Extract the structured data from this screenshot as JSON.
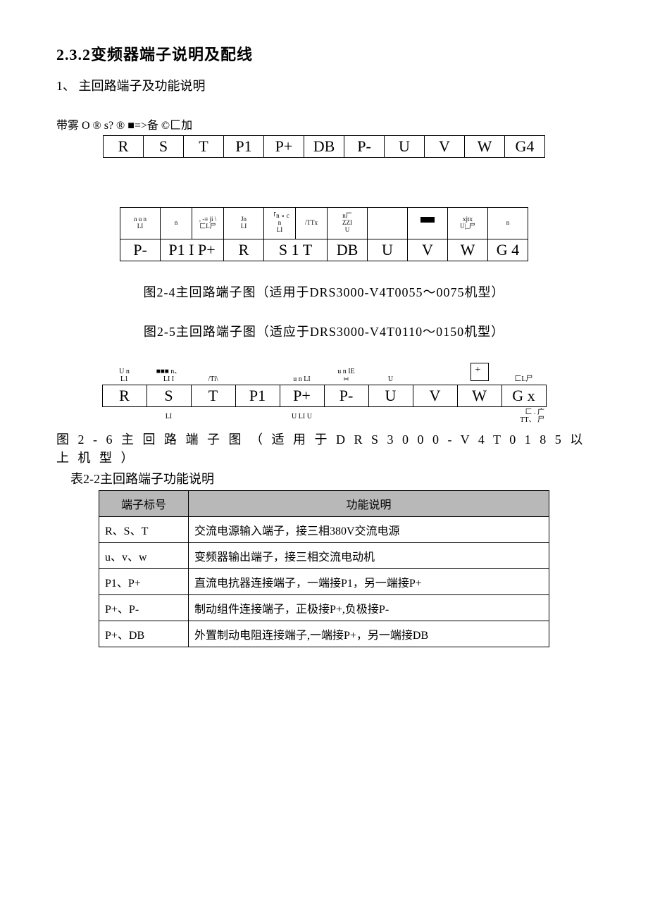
{
  "heading": "2.3.2变频器端子说明及配线",
  "subheading": "1、 主回路端子及功能说明",
  "note_line": "带雾 O ® s? ® ■=>备 ©匚加",
  "strip1": {
    "cells": [
      "R",
      "S",
      "T",
      "P1",
      "P+",
      "DB",
      "P-",
      "U",
      "V",
      "W",
      "G4"
    ]
  },
  "strip2": {
    "top_labels": [
      "n u n\nLI",
      "n",
      ", -≡ ji \\\n匚L尸",
      "Jn\nLI",
      "「n ∘ c\nn\nLI",
      "/TTx",
      "n厂\nZZI\nU",
      "",
      "",
      "xjtx\nU|_尸",
      "n"
    ],
    "cells": [
      "P-",
      "P1 I P+",
      "R",
      "S 1 T",
      "DB",
      "U",
      "V",
      "W",
      "G  4"
    ]
  },
  "caption1": "图2-4主回路端子图（适用于DRS3000-V4T0055～0075机型）",
  "caption2": "图2-5主回路端子图（适应于DRS3000-V4T0110～0150机型）",
  "strip3": {
    "top_labels": [
      "U n\nL1",
      "■■■ n、\nLI I",
      "/Ti\\",
      "",
      "u n LI",
      "u n IE\n∺",
      "U",
      "",
      "匚L尸"
    ],
    "cells": [
      "R",
      "S",
      "T",
      "P1",
      "P+",
      "P-",
      "U",
      "V",
      "W",
      "G x"
    ],
    "under_left": "LI",
    "under_mid": "U LI U",
    "under_right": "匚 . 广\nTT、 尸"
  },
  "caption3": "图 2 - 6 主 回 路 端 子 图 （ 适 用 于 D R S 3 0 0 0 - V 4 T 0 1 8 5 以 上 机 型 ）",
  "table_caption": "表2-2主回路端子功能说明",
  "func_table": {
    "headers": [
      "端子标号",
      "功能说明"
    ],
    "rows": [
      [
        "R、S、T",
        "交流电源输入端子，接三相380V交流电源"
      ],
      [
        "u、v、w",
        "变频器输出端子，接三相交流电动机"
      ],
      [
        "P1、P+",
        "直流电抗器连接端子，一端接P1，另一端接P+"
      ],
      [
        "P+、P-",
        "制动组件连接端子，正极接P+,负极接P-"
      ],
      [
        "P+、DB",
        "外置制动电阻连接端子,一端接P+，另一端接DB"
      ]
    ]
  }
}
